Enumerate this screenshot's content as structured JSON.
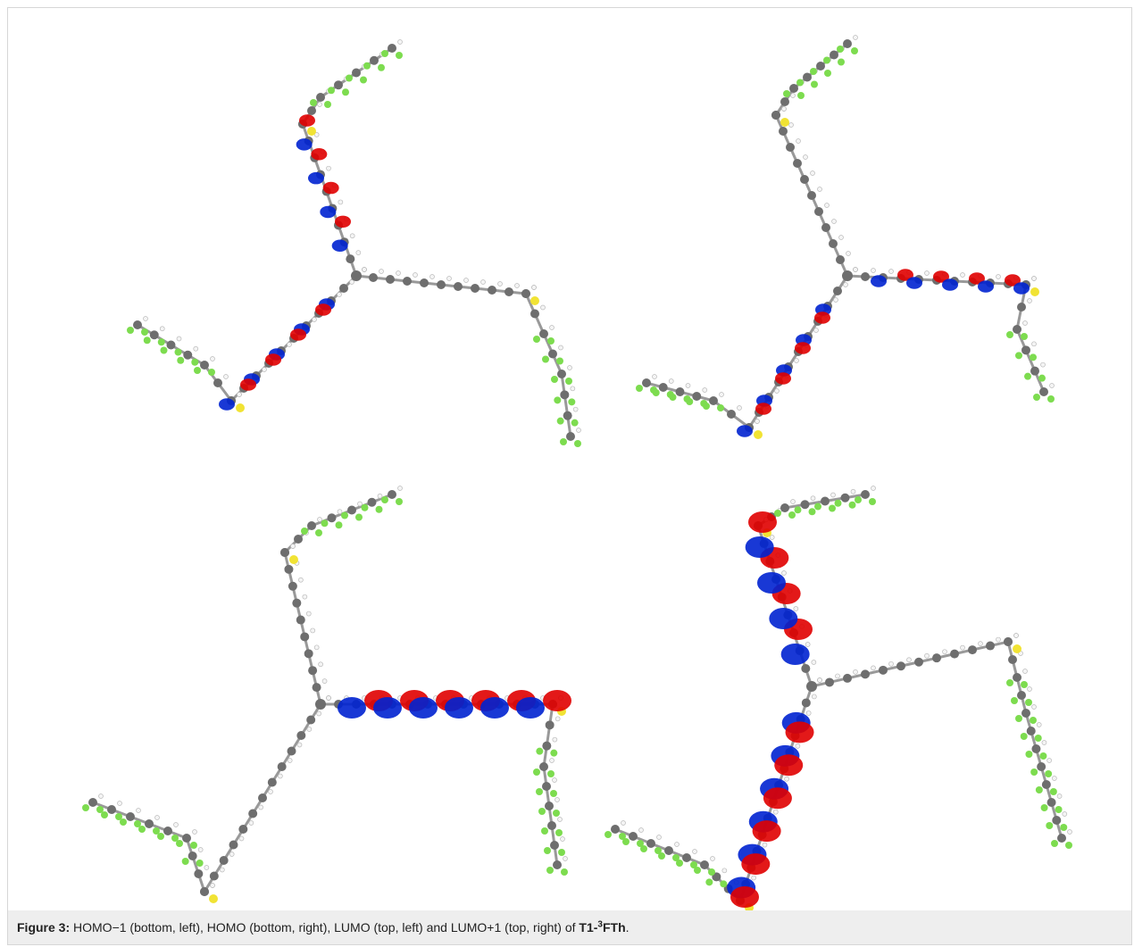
{
  "caption": {
    "label": "Figure 3:",
    "text": "HOMO−1 (bottom, left), HOMO (bottom, right), LUMO (top, left) and LUMO+1 (top, right) of ",
    "compound_prefix": "T1-",
    "compound_sup": "3",
    "compound_suffix": "FTh",
    "end": "."
  }
}
